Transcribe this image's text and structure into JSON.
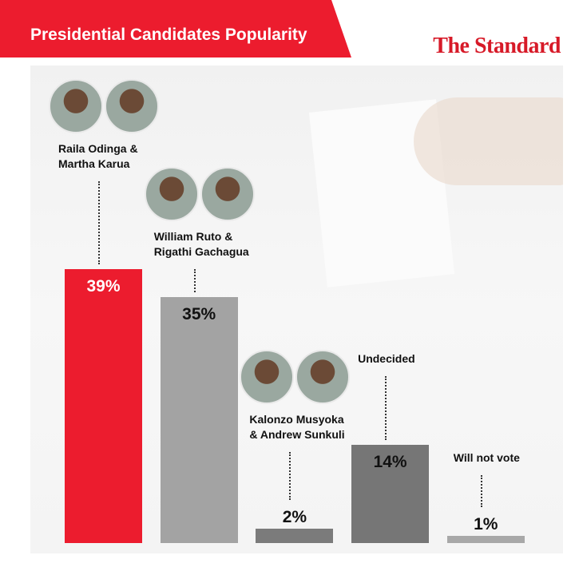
{
  "chart_data": {
    "type": "bar",
    "title": "Presidential Candidates Popularity",
    "brand": "The Standard",
    "categories": [
      "Raila Odinga & Martha Karua",
      "William Ruto & Rigathi Gachagua",
      "Kalonzo Musyoka & Andrew Sunkuli",
      "Undecided",
      "Will not vote"
    ],
    "values": [
      39,
      35,
      2,
      14,
      1
    ],
    "value_labels": [
      "39%",
      "35%",
      "2%",
      "14%",
      "1%"
    ],
    "colors": [
      "#ec1c2e",
      "#a3a3a3",
      "#7b7b7b",
      "#767676",
      "#a8a8a8"
    ]
  }
}
